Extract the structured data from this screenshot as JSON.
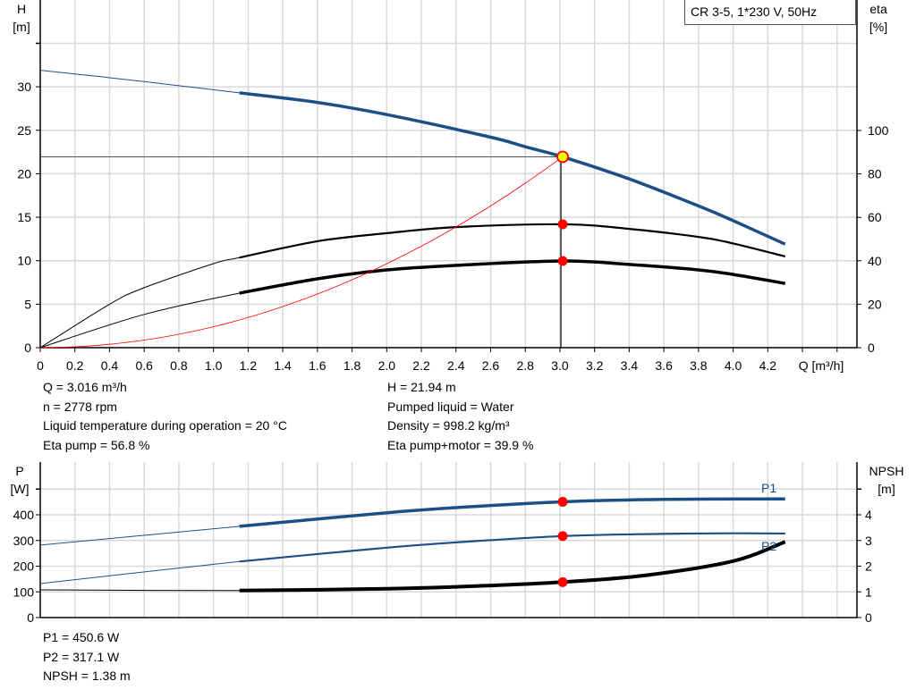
{
  "title": "CR 3-5, 1*230 V, 50Hz",
  "colors": {
    "blue": "#1b4f86",
    "red": "#ff0000",
    "grid": "#d9d9d9",
    "op_point_fill": "#ffff00"
  },
  "info_top": {
    "q": "Q = 3.016 m³/h",
    "n": "n = 2778 rpm",
    "temp": "Liquid temperature during operation = 20 °C",
    "eta_pump": "Eta pump = 56.8 %",
    "h": "H = 21.94 m",
    "liquid": "Pumped liquid = Water",
    "density": "Density = 998.2 kg/m³",
    "eta_total": "Eta pump+motor = 39.9 %"
  },
  "info_bottom": {
    "p1": "P1 = 450.6 W",
    "p2": "P2 = 317.1 W",
    "npsh": "NPSH = 1.38 m"
  },
  "chart_data": [
    {
      "type": "line",
      "xlabel": "Q [m³/h]",
      "ylabel": "H",
      "ylabel_unit": "[m]",
      "y2label": "eta",
      "y2label_unit": "[%]",
      "xlim": [
        0,
        4.7
      ],
      "ylim": [
        0,
        40
      ],
      "y2lim": [
        0,
        160
      ],
      "grid": true,
      "x_ticks": [
        "0",
        "0.2",
        "0.4",
        "0.6",
        "0.8",
        "1.0",
        "1.2",
        "1.4",
        "1.6",
        "1.8",
        "2.0",
        "2.2",
        "2.4",
        "2.6",
        "2.8",
        "3.0",
        "3.2",
        "3.4",
        "3.6",
        "3.8",
        "4.0",
        "4.2"
      ],
      "y_ticks": [
        "0",
        "5",
        "10",
        "15",
        "20",
        "25",
        "30"
      ],
      "y2_ticks": [
        "0",
        "20",
        "40",
        "60",
        "80",
        "100"
      ],
      "duty_range": [
        1.15,
        4.3
      ],
      "operating_point": {
        "q": 3.016,
        "h": 21.94,
        "eta_pump": 56.8,
        "eta_total": 39.9
      },
      "series": [
        {
          "id": "H",
          "axis": "left",
          "color": "#1b4f86",
          "x": [
            0,
            0.6,
            1.15,
            1.6,
            2.0,
            2.6,
            2.8,
            3.016,
            3.4,
            3.8,
            4.0,
            4.3
          ],
          "y": [
            31.9,
            30.6,
            29.3,
            28.2,
            26.8,
            24.2,
            23.1,
            21.94,
            19.4,
            16.3,
            14.6,
            11.9
          ]
        },
        {
          "id": "eta_pump",
          "axis": "right",
          "color": "#000000",
          "x": [
            0,
            0.4,
            0.6,
            1.0,
            1.15,
            1.6,
            2.0,
            2.4,
            3.016,
            3.4,
            3.8,
            4.0,
            4.3
          ],
          "y": [
            0,
            20,
            27.6,
            38.7,
            41.5,
            49,
            52.7,
            55.5,
            56.8,
            54.7,
            51,
            48,
            42
          ]
        },
        {
          "id": "eta_total",
          "axis": "right",
          "color": "#000000",
          "x": [
            0,
            0.6,
            1.15,
            1.6,
            2.0,
            2.4,
            3.016,
            3.4,
            3.8,
            4.0,
            4.3
          ],
          "y": [
            0,
            15.3,
            25.1,
            31.7,
            35.8,
            37.9,
            39.9,
            38.3,
            35.8,
            33.7,
            29.6
          ]
        },
        {
          "id": "system_curve",
          "axis": "left",
          "color": "#ff0000",
          "x": [
            0,
            0.2,
            0.4,
            0.6,
            0.8,
            1.0,
            1.2,
            1.4,
            1.6,
            1.8,
            2.0,
            2.2,
            2.4,
            2.6,
            2.8,
            3.016
          ],
          "y": [
            0,
            0.1,
            0.39,
            0.87,
            1.54,
            2.41,
            3.47,
            4.73,
            6.17,
            7.81,
            9.65,
            11.67,
            13.89,
            16.3,
            18.91,
            21.94
          ]
        }
      ]
    },
    {
      "type": "line",
      "ylabel": "P",
      "ylabel_unit": "[W]",
      "y2label": "NPSH",
      "y2label_unit": "[m]",
      "xlim": [
        0,
        4.7
      ],
      "ylim": [
        0,
        600
      ],
      "y2lim": [
        0,
        6
      ],
      "grid": true,
      "y_ticks": [
        "0",
        "100",
        "200",
        "300",
        "400"
      ],
      "y2_ticks": [
        "0",
        "1",
        "2",
        "3",
        "4"
      ],
      "duty_range": [
        1.15,
        4.3
      ],
      "operating_point": {
        "q": 3.016,
        "p1": 450.6,
        "p2": 317.1,
        "npsh": 1.38
      },
      "series": [
        {
          "id": "P1",
          "name": "P1",
          "axis": "left",
          "color": "#1b4f86",
          "x": [
            0,
            1.15,
            2.0,
            2.5,
            3.016,
            3.6,
            4.3
          ],
          "y": [
            282,
            355,
            408,
            432,
            450.6,
            460,
            462
          ]
        },
        {
          "id": "P2",
          "name": "P2",
          "axis": "left",
          "color": "#1b4f86",
          "x": [
            0,
            1.15,
            2.0,
            2.5,
            3.016,
            3.5,
            4.0,
            4.3
          ],
          "y": [
            132,
            218,
            272,
            297,
            317.1,
            325,
            328,
            327
          ]
        },
        {
          "id": "NPSH",
          "axis": "right",
          "color": "#000000",
          "x": [
            0,
            1.15,
            2.0,
            2.5,
            3.016,
            3.5,
            4.0,
            4.3
          ],
          "y": [
            1.08,
            1.05,
            1.12,
            1.22,
            1.38,
            1.65,
            2.2,
            2.95
          ]
        }
      ]
    }
  ]
}
